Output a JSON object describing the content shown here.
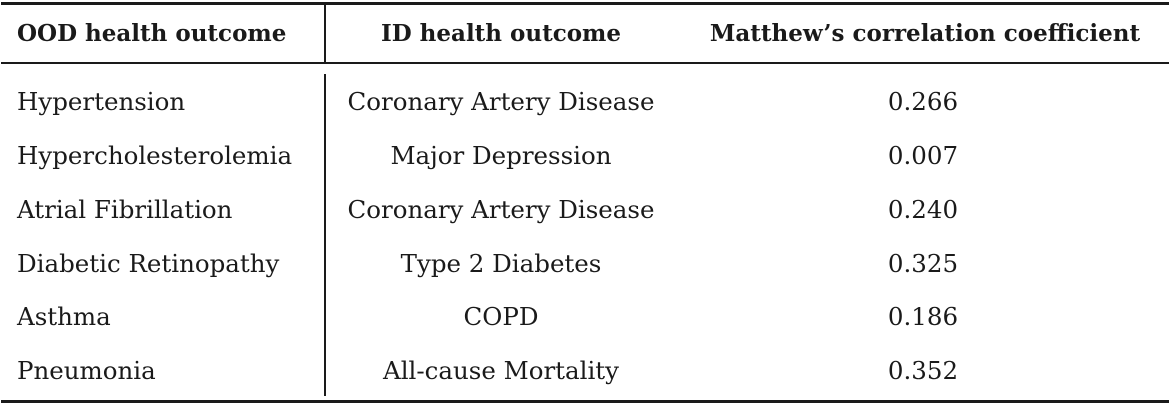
{
  "table": {
    "headers": [
      "OOD health outcome",
      "ID health outcome",
      "Matthew’s correlation coefficient"
    ],
    "rows": [
      [
        "Hypertension",
        "Coronary Artery Disease",
        "0.266"
      ],
      [
        "Hypercholesterolemia",
        "Major Depression",
        "0.007"
      ],
      [
        "Atrial Fibrillation",
        "Coronary Artery Disease",
        "0.240"
      ],
      [
        "Diabetic Retinopathy",
        "Type 2 Diabetes",
        "0.325"
      ],
      [
        "Asthma",
        "COPD",
        "0.186"
      ],
      [
        "Pneumonia",
        "All-cause Mortality",
        "0.352"
      ]
    ]
  }
}
